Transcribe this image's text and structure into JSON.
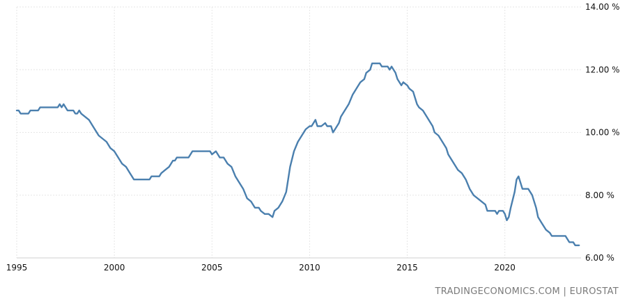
{
  "chart_data": {
    "type": "line",
    "title": "",
    "xlabel": "",
    "ylabel": "",
    "xlim": [
      1995.0,
      2023.9
    ],
    "ylim": [
      6.0,
      14.0
    ],
    "grid": true,
    "legend": "none",
    "x_ticks": [
      {
        "value": 1995,
        "label": "1995"
      },
      {
        "value": 2000,
        "label": "2000"
      },
      {
        "value": 2005,
        "label": "2005"
      },
      {
        "value": 2010,
        "label": "2010"
      },
      {
        "value": 2015,
        "label": "2015"
      },
      {
        "value": 2020,
        "label": "2020"
      }
    ],
    "y_ticks": [
      {
        "value": 6,
        "label": "6.00 %"
      },
      {
        "value": 8,
        "label": "8.00 %"
      },
      {
        "value": 10,
        "label": "10.00 %"
      },
      {
        "value": 12,
        "label": "12.00 %"
      },
      {
        "value": 14,
        "label": "14.00 %"
      }
    ],
    "series": [
      {
        "color": "#4a7fae",
        "points": [
          [
            1995.0,
            10.7
          ],
          [
            1995.1,
            10.7
          ],
          [
            1995.2,
            10.6
          ],
          [
            1995.4,
            10.6
          ],
          [
            1995.6,
            10.6
          ],
          [
            1995.7,
            10.7
          ],
          [
            1995.9,
            10.7
          ],
          [
            1996.1,
            10.7
          ],
          [
            1996.2,
            10.8
          ],
          [
            1996.5,
            10.8
          ],
          [
            1996.8,
            10.8
          ],
          [
            1997.1,
            10.8
          ],
          [
            1997.2,
            10.9
          ],
          [
            1997.3,
            10.8
          ],
          [
            1997.4,
            10.9
          ],
          [
            1997.5,
            10.8
          ],
          [
            1997.6,
            10.7
          ],
          [
            1997.9,
            10.7
          ],
          [
            1998.0,
            10.6
          ],
          [
            1998.1,
            10.6
          ],
          [
            1998.2,
            10.7
          ],
          [
            1998.3,
            10.6
          ],
          [
            1998.5,
            10.5
          ],
          [
            1998.7,
            10.4
          ],
          [
            1998.9,
            10.2
          ],
          [
            1999.0,
            10.1
          ],
          [
            1999.2,
            9.9
          ],
          [
            1999.4,
            9.8
          ],
          [
            1999.6,
            9.7
          ],
          [
            1999.8,
            9.5
          ],
          [
            2000.0,
            9.4
          ],
          [
            2000.2,
            9.2
          ],
          [
            2000.4,
            9.0
          ],
          [
            2000.6,
            8.9
          ],
          [
            2000.8,
            8.7
          ],
          [
            2001.0,
            8.5
          ],
          [
            2001.3,
            8.5
          ],
          [
            2001.6,
            8.5
          ],
          [
            2001.8,
            8.5
          ],
          [
            2001.9,
            8.6
          ],
          [
            2002.1,
            8.6
          ],
          [
            2002.3,
            8.6
          ],
          [
            2002.4,
            8.7
          ],
          [
            2002.6,
            8.8
          ],
          [
            2002.8,
            8.9
          ],
          [
            2003.0,
            9.1
          ],
          [
            2003.1,
            9.1
          ],
          [
            2003.2,
            9.2
          ],
          [
            2003.5,
            9.2
          ],
          [
            2003.8,
            9.2
          ],
          [
            2003.9,
            9.3
          ],
          [
            2004.0,
            9.4
          ],
          [
            2004.3,
            9.4
          ],
          [
            2004.6,
            9.4
          ],
          [
            2004.9,
            9.4
          ],
          [
            2005.0,
            9.3
          ],
          [
            2005.2,
            9.4
          ],
          [
            2005.4,
            9.2
          ],
          [
            2005.6,
            9.2
          ],
          [
            2005.8,
            9.0
          ],
          [
            2006.0,
            8.9
          ],
          [
            2006.2,
            8.6
          ],
          [
            2006.4,
            8.4
          ],
          [
            2006.6,
            8.2
          ],
          [
            2006.8,
            7.9
          ],
          [
            2007.0,
            7.8
          ],
          [
            2007.2,
            7.6
          ],
          [
            2007.4,
            7.6
          ],
          [
            2007.5,
            7.5
          ],
          [
            2007.7,
            7.4
          ],
          [
            2007.9,
            7.4
          ],
          [
            2008.1,
            7.3
          ],
          [
            2008.2,
            7.5
          ],
          [
            2008.4,
            7.6
          ],
          [
            2008.6,
            7.8
          ],
          [
            2008.8,
            8.1
          ],
          [
            2008.9,
            8.5
          ],
          [
            2009.0,
            8.9
          ],
          [
            2009.2,
            9.4
          ],
          [
            2009.4,
            9.7
          ],
          [
            2009.6,
            9.9
          ],
          [
            2009.8,
            10.1
          ],
          [
            2010.0,
            10.2
          ],
          [
            2010.1,
            10.2
          ],
          [
            2010.2,
            10.3
          ],
          [
            2010.3,
            10.4
          ],
          [
            2010.4,
            10.2
          ],
          [
            2010.6,
            10.2
          ],
          [
            2010.8,
            10.3
          ],
          [
            2010.9,
            10.2
          ],
          [
            2011.1,
            10.2
          ],
          [
            2011.2,
            10.0
          ],
          [
            2011.3,
            10.1
          ],
          [
            2011.5,
            10.3
          ],
          [
            2011.6,
            10.5
          ],
          [
            2011.8,
            10.7
          ],
          [
            2012.0,
            10.9
          ],
          [
            2012.2,
            11.2
          ],
          [
            2012.4,
            11.4
          ],
          [
            2012.6,
            11.6
          ],
          [
            2012.8,
            11.7
          ],
          [
            2012.9,
            11.9
          ],
          [
            2013.1,
            12.0
          ],
          [
            2013.2,
            12.2
          ],
          [
            2013.4,
            12.2
          ],
          [
            2013.6,
            12.2
          ],
          [
            2013.7,
            12.1
          ],
          [
            2014.0,
            12.1
          ],
          [
            2014.1,
            12.0
          ],
          [
            2014.2,
            12.1
          ],
          [
            2014.4,
            11.9
          ],
          [
            2014.5,
            11.7
          ],
          [
            2014.6,
            11.6
          ],
          [
            2014.7,
            11.5
          ],
          [
            2014.8,
            11.6
          ],
          [
            2015.0,
            11.5
          ],
          [
            2015.1,
            11.4
          ],
          [
            2015.3,
            11.3
          ],
          [
            2015.4,
            11.1
          ],
          [
            2015.5,
            10.9
          ],
          [
            2015.6,
            10.8
          ],
          [
            2015.8,
            10.7
          ],
          [
            2016.0,
            10.5
          ],
          [
            2016.2,
            10.3
          ],
          [
            2016.3,
            10.2
          ],
          [
            2016.4,
            10.0
          ],
          [
            2016.6,
            9.9
          ],
          [
            2016.8,
            9.7
          ],
          [
            2017.0,
            9.5
          ],
          [
            2017.1,
            9.3
          ],
          [
            2017.2,
            9.2
          ],
          [
            2017.4,
            9.0
          ],
          [
            2017.6,
            8.8
          ],
          [
            2017.8,
            8.7
          ],
          [
            2018.0,
            8.5
          ],
          [
            2018.2,
            8.2
          ],
          [
            2018.4,
            8.0
          ],
          [
            2018.6,
            7.9
          ],
          [
            2018.8,
            7.8
          ],
          [
            2019.0,
            7.7
          ],
          [
            2019.1,
            7.5
          ],
          [
            2019.3,
            7.5
          ],
          [
            2019.5,
            7.5
          ],
          [
            2019.6,
            7.4
          ],
          [
            2019.7,
            7.5
          ],
          [
            2019.9,
            7.5
          ],
          [
            2020.0,
            7.4
          ],
          [
            2020.1,
            7.2
          ],
          [
            2020.2,
            7.3
          ],
          [
            2020.3,
            7.6
          ],
          [
            2020.5,
            8.1
          ],
          [
            2020.6,
            8.5
          ],
          [
            2020.7,
            8.6
          ],
          [
            2020.8,
            8.4
          ],
          [
            2020.9,
            8.2
          ],
          [
            2021.2,
            8.2
          ],
          [
            2021.4,
            8.0
          ],
          [
            2021.6,
            7.6
          ],
          [
            2021.7,
            7.3
          ],
          [
            2021.9,
            7.1
          ],
          [
            2022.1,
            6.9
          ],
          [
            2022.3,
            6.8
          ],
          [
            2022.4,
            6.7
          ],
          [
            2022.7,
            6.7
          ],
          [
            2023.0,
            6.7
          ],
          [
            2023.1,
            6.7
          ],
          [
            2023.2,
            6.6
          ],
          [
            2023.3,
            6.5
          ],
          [
            2023.5,
            6.5
          ],
          [
            2023.6,
            6.4
          ],
          [
            2023.8,
            6.4
          ]
        ]
      }
    ]
  },
  "source_label": "TRADINGECONOMICS.COM  |  EUROSTAT"
}
